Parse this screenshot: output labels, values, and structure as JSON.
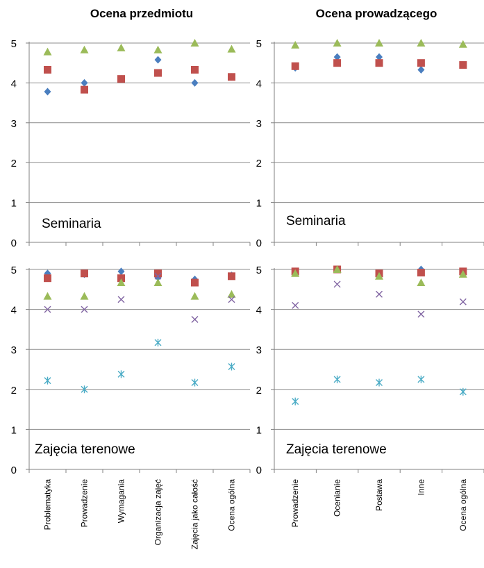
{
  "columns": [
    {
      "title": "Ocena przedmiotu"
    },
    {
      "title": "Ocena prowadzącego"
    }
  ],
  "colors": {
    "blue_diamond": "#4a7ebf",
    "red_square": "#c0504d",
    "green_triangle": "#9bbb59",
    "purple_x": "#8064a2",
    "cyan_star": "#4bacc6",
    "grid": "#8c8c8c"
  },
  "chart_data": [
    {
      "type": "scatter",
      "title": "Ocena przedmiotu",
      "panel_label": "Seminaria",
      "categories": [
        "Problematyka",
        "Prowadzenie",
        "Wymagania",
        "Organizacja zajęć",
        "Zajęcia jako całość",
        "Ocena ogólna"
      ],
      "ylim": [
        0,
        5
      ],
      "yticks": [
        "0",
        "1",
        "2",
        "3",
        "4",
        "5"
      ],
      "grid": true,
      "show_xlabels": false,
      "series": [
        {
          "marker": "diamond",
          "color": "#4a7ebf",
          "values": [
            3.78,
            4.0,
            4.1,
            4.58,
            4.0,
            4.15
          ]
        },
        {
          "marker": "square",
          "color": "#c0504d",
          "values": [
            4.33,
            3.83,
            4.1,
            4.25,
            4.33,
            4.15
          ]
        },
        {
          "marker": "triangle",
          "color": "#9bbb59",
          "values": [
            4.78,
            4.83,
            4.88,
            4.83,
            5.0,
            4.85
          ]
        }
      ]
    },
    {
      "type": "scatter",
      "title": "Ocena prowadzącego",
      "panel_label": "Seminaria",
      "categories": [
        "Prowadzenie",
        "Ocenianie",
        "Postawa",
        "Inne",
        "Ocena ogólna"
      ],
      "ylim": [
        0,
        5
      ],
      "yticks": [
        "0",
        "1",
        "2",
        "3",
        "4",
        "5"
      ],
      "grid": true,
      "show_xlabels": false,
      "series": [
        {
          "marker": "diamond",
          "color": "#4a7ebf",
          "values": [
            4.38,
            4.65,
            4.65,
            4.33,
            4.45
          ]
        },
        {
          "marker": "square",
          "color": "#c0504d",
          "values": [
            4.42,
            4.5,
            4.5,
            4.5,
            4.45
          ]
        },
        {
          "marker": "triangle",
          "color": "#9bbb59",
          "values": [
            4.95,
            5.0,
            5.0,
            5.0,
            4.97
          ]
        }
      ]
    },
    {
      "type": "scatter",
      "title": "",
      "panel_label": "Zajęcia terenowe",
      "categories": [
        "Problematyka",
        "Prowadzenie",
        "Wymagania",
        "Organizacja zajęć",
        "Zajęcia jako całość",
        "Ocena ogólna"
      ],
      "ylim": [
        0,
        5
      ],
      "yticks": [
        "0",
        "1",
        "2",
        "3",
        "4",
        "5"
      ],
      "grid": true,
      "show_xlabels": true,
      "series": [
        {
          "marker": "diamond",
          "color": "#4a7ebf",
          "values": [
            4.9,
            4.88,
            4.95,
            4.8,
            4.75,
            4.85
          ]
        },
        {
          "marker": "square",
          "color": "#c0504d",
          "values": [
            4.78,
            4.9,
            4.78,
            4.9,
            4.67,
            4.83
          ]
        },
        {
          "marker": "triangle",
          "color": "#9bbb59",
          "values": [
            4.33,
            4.33,
            4.67,
            4.67,
            4.33,
            4.38
          ]
        },
        {
          "marker": "x",
          "color": "#8064a2",
          "values": [
            4.0,
            4.0,
            4.25,
            4.83,
            3.75,
            4.25
          ]
        },
        {
          "marker": "star",
          "color": "#4bacc6",
          "values": [
            2.22,
            2.0,
            2.38,
            3.17,
            2.17,
            2.57
          ]
        }
      ]
    },
    {
      "type": "scatter",
      "title": "",
      "panel_label": "Zajęcia terenowe",
      "categories": [
        "Prowadzenie",
        "Ocenianie",
        "Postawa",
        "Inne",
        "Ocena ogólna"
      ],
      "ylim": [
        0,
        5
      ],
      "yticks": [
        "0",
        "1",
        "2",
        "3",
        "4",
        "5"
      ],
      "grid": true,
      "show_xlabels": true,
      "series": [
        {
          "marker": "diamond",
          "color": "#4a7ebf",
          "values": [
            4.95,
            5.0,
            4.9,
            5.0,
            4.95
          ]
        },
        {
          "marker": "square",
          "color": "#c0504d",
          "values": [
            4.95,
            5.0,
            4.9,
            4.92,
            4.95
          ]
        },
        {
          "marker": "triangle",
          "color": "#9bbb59",
          "values": [
            4.9,
            5.0,
            4.83,
            4.67,
            4.88
          ]
        },
        {
          "marker": "x",
          "color": "#8064a2",
          "values": [
            4.1,
            4.63,
            4.38,
            3.88,
            4.19
          ]
        },
        {
          "marker": "star",
          "color": "#4bacc6",
          "values": [
            1.7,
            2.25,
            2.17,
            2.25,
            1.94
          ]
        }
      ]
    }
  ]
}
